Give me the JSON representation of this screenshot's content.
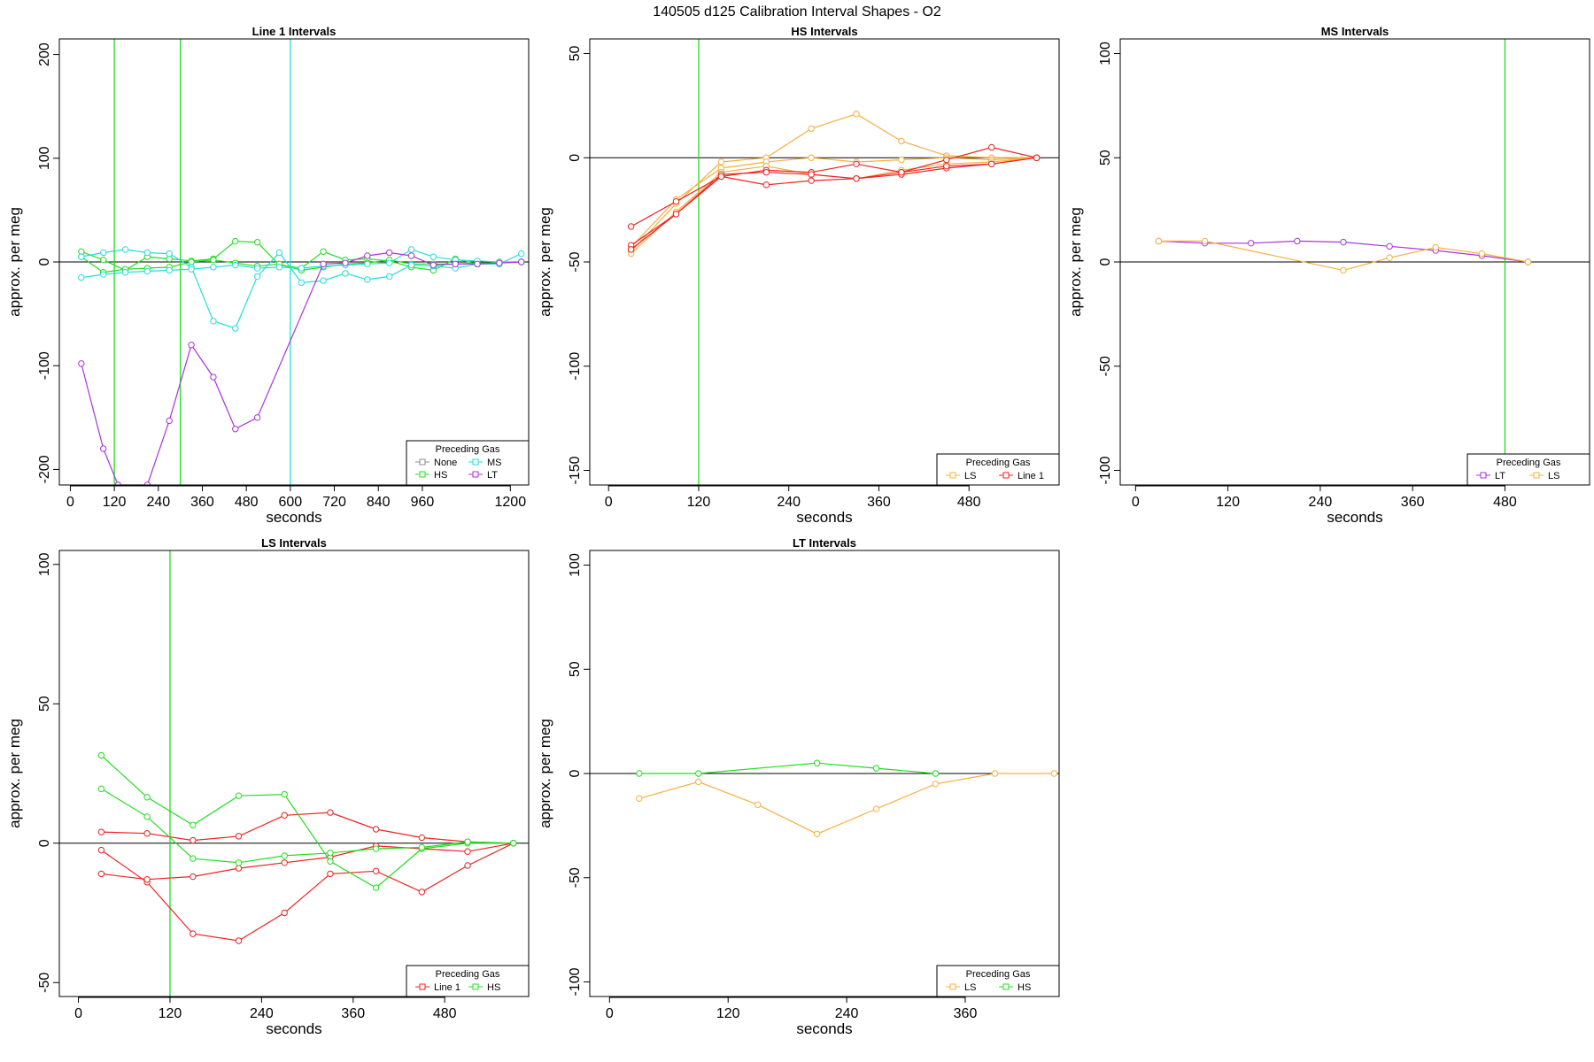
{
  "figure_title": "140505   d125   Calibration Interval Shapes - O2",
  "colors": {
    "None": "#888888",
    "HS": "#22dd22",
    "MS": "#22dddd",
    "LT": "#aa33dd",
    "LS": "#f5b040",
    "Line 1": "#ee2222"
  },
  "chart_data": [
    {
      "type": "line",
      "title": "Line 1 Intervals",
      "xlabel": "seconds",
      "ylabel": "approx. per meg",
      "xlim": [
        -30,
        1250
      ],
      "ylim": [
        -215,
        215
      ],
      "xticks": [
        0,
        120,
        240,
        360,
        480,
        600,
        720,
        840,
        960,
        1200
      ],
      "yticks": [
        -200,
        -100,
        0,
        100,
        200
      ],
      "hlines": [
        0
      ],
      "vlines": [
        {
          "x": 120,
          "color": "HS"
        },
        {
          "x": 300,
          "color": "HS"
        },
        {
          "x": 600,
          "color": "MS"
        }
      ],
      "legend": {
        "title": "Preceding Gas",
        "position": "bottom-right",
        "columns": 2,
        "entries": [
          "None",
          "MS",
          "HS",
          "LT"
        ]
      },
      "series": [
        {
          "color": "HS",
          "x": [
            30,
            90,
            150,
            210,
            270,
            330,
            390,
            450,
            510,
            570,
            630,
            690,
            750,
            810,
            870,
            930,
            990,
            1050,
            1110,
            1170,
            1230
          ],
          "y": [
            10,
            2,
            -8,
            5,
            3,
            1,
            3,
            20,
            19,
            -3,
            -6,
            10,
            2,
            3,
            1,
            -5,
            -8,
            3,
            -2,
            0,
            0
          ]
        },
        {
          "color": "HS",
          "x": [
            30,
            90,
            150,
            210,
            270,
            330,
            390,
            450,
            510,
            570,
            630,
            690,
            750,
            810,
            870,
            930,
            990,
            1050,
            1110,
            1170,
            1230
          ],
          "y": [
            5,
            -10,
            -7,
            -6,
            -5,
            0,
            2,
            -1,
            -4,
            -2,
            -8,
            -5,
            -2,
            -1,
            2,
            -2,
            -2,
            -2,
            -1,
            -1,
            0
          ]
        },
        {
          "color": "MS",
          "x": [
            30,
            90,
            150,
            210,
            270,
            330,
            390,
            450,
            510,
            570,
            630,
            690,
            750,
            810,
            870,
            930,
            990,
            1050,
            1110,
            1170,
            1230
          ],
          "y": [
            5,
            9,
            12,
            9,
            8,
            -5,
            -57,
            -64,
            -14,
            9,
            -20,
            -18,
            -11,
            -17,
            -14,
            -3,
            -4,
            -6,
            -2,
            -2,
            8
          ]
        },
        {
          "color": "MS",
          "x": [
            30,
            90,
            150,
            210,
            270,
            330,
            390,
            450,
            510,
            570,
            630,
            690,
            750,
            810,
            870,
            930,
            990,
            1050,
            1110,
            1170,
            1230
          ],
          "y": [
            -15,
            -12,
            -10,
            -9,
            -8,
            -7,
            -5,
            -3,
            -6,
            -5,
            -6,
            -4,
            -3,
            -2,
            -1,
            12,
            5,
            2,
            1,
            0,
            0
          ]
        },
        {
          "color": "LT",
          "x": [
            30,
            90,
            130,
            210,
            270,
            330,
            390,
            450,
            510,
            690,
            750,
            810,
            870,
            930,
            990,
            1050,
            1110,
            1170,
            1230
          ],
          "y": [
            -98,
            -180,
            -215,
            -215,
            -153,
            -80,
            -111,
            -161,
            -150,
            -2,
            -1,
            6,
            9,
            6,
            -3,
            -2,
            -2,
            -1,
            0
          ]
        }
      ]
    },
    {
      "type": "line",
      "title": "HS Intervals",
      "xlabel": "seconds",
      "ylabel": "approx. per meg",
      "xlim": [
        -25,
        600
      ],
      "ylim": [
        -157,
        57
      ],
      "xticks": [
        0,
        120,
        240,
        360,
        480
      ],
      "yticks": [
        -150,
        -100,
        -50,
        0,
        50
      ],
      "hlines": [
        0
      ],
      "vlines": [
        {
          "x": 120,
          "color": "HS"
        }
      ],
      "legend": {
        "title": "Preceding Gas",
        "position": "bottom-right",
        "columns": 2,
        "entries": [
          "LS",
          "Line 1"
        ]
      },
      "series": [
        {
          "color": "LS",
          "x": [
            30,
            90,
            150,
            210,
            270,
            330,
            390,
            450,
            510,
            570
          ],
          "y": [
            -45,
            -22,
            -2,
            0,
            14,
            21,
            8,
            1,
            0,
            0
          ]
        },
        {
          "color": "LS",
          "x": [
            30,
            90,
            150,
            210,
            270,
            330,
            390,
            450,
            510,
            570
          ],
          "y": [
            -43,
            -20,
            -5,
            -2,
            0,
            -2,
            -1,
            0,
            -1,
            0
          ]
        },
        {
          "color": "LS",
          "x": [
            30,
            90,
            150,
            210,
            270,
            330,
            390,
            450,
            510,
            570
          ],
          "y": [
            -46,
            -26,
            -7,
            -4,
            -8,
            -10,
            -6,
            -3,
            -2,
            0
          ]
        },
        {
          "color": "Line 1",
          "x": [
            30,
            90,
            150,
            210,
            270,
            330,
            390,
            450,
            510,
            570
          ],
          "y": [
            -33,
            -21,
            -9,
            -6,
            -7,
            -3,
            -7,
            -1,
            5,
            0
          ]
        },
        {
          "color": "Line 1",
          "x": [
            30,
            90,
            150,
            210,
            270,
            330,
            390,
            450,
            510,
            570
          ],
          "y": [
            -42,
            -27,
            -8,
            -7,
            -8,
            -10,
            -8,
            -5,
            -3,
            0
          ]
        },
        {
          "color": "Line 1",
          "x": [
            30,
            90,
            150,
            210,
            270,
            330,
            390,
            450,
            510,
            570
          ],
          "y": [
            -44,
            -27,
            -9,
            -13,
            -11,
            -10,
            -7,
            -4,
            -3,
            0
          ]
        }
      ]
    },
    {
      "type": "line",
      "title": "MS Intervals",
      "xlabel": "seconds",
      "ylabel": "approx. per meg",
      "xlim": [
        -20,
        590
      ],
      "ylim": [
        -107,
        107
      ],
      "xticks": [
        0,
        120,
        240,
        360,
        480
      ],
      "yticks": [
        -100,
        -50,
        0,
        50,
        100
      ],
      "hlines": [
        0
      ],
      "vlines": [
        {
          "x": 480,
          "color": "HS"
        }
      ],
      "legend": {
        "title": "Preceding Gas",
        "position": "bottom-right",
        "columns": 2,
        "entries": [
          "LT",
          "LS"
        ]
      },
      "series": [
        {
          "color": "LT",
          "x": [
            30,
            90,
            150,
            210,
            270,
            330,
            390,
            450,
            510
          ],
          "y": [
            10,
            9,
            9,
            10,
            9.5,
            7.5,
            5.5,
            3,
            0
          ]
        },
        {
          "color": "LS",
          "x": [
            30,
            90,
            270,
            330,
            390,
            450,
            510
          ],
          "y": [
            10,
            10,
            -4,
            2,
            7,
            4,
            0
          ]
        }
      ]
    },
    {
      "type": "line",
      "title": "LS Intervals",
      "xlabel": "seconds",
      "ylabel": "approx. per meg",
      "xlim": [
        -25,
        590
      ],
      "ylim": [
        -55,
        105
      ],
      "xticks": [
        0,
        120,
        240,
        360,
        480
      ],
      "yticks": [
        -50,
        0,
        50,
        100
      ],
      "hlines": [
        0
      ],
      "vlines": [
        {
          "x": 120,
          "color": "HS"
        }
      ],
      "legend": {
        "title": "Preceding Gas",
        "position": "bottom-right",
        "columns": 2,
        "entries": [
          "Line 1",
          "HS"
        ]
      },
      "series": [
        {
          "color": "Line 1",
          "x": [
            30,
            90,
            150,
            210,
            270,
            330,
            390,
            450,
            510,
            570
          ],
          "y": [
            4,
            3.5,
            1,
            2.5,
            10,
            11,
            5,
            2,
            0.5,
            0
          ]
        },
        {
          "color": "Line 1",
          "x": [
            30,
            90,
            150,
            210,
            270,
            330,
            390,
            450,
            510,
            570
          ],
          "y": [
            -2.5,
            -14,
            -32.5,
            -35,
            -25,
            -11,
            -10,
            -17.5,
            -8,
            0
          ]
        },
        {
          "color": "Line 1",
          "x": [
            30,
            90,
            150,
            210,
            270,
            330,
            390,
            450,
            510,
            570
          ],
          "y": [
            -11,
            -13,
            -12,
            -9,
            -7,
            -5,
            -1,
            -2,
            -3,
            0
          ]
        },
        {
          "color": "HS",
          "x": [
            30,
            90,
            150,
            210,
            270,
            330,
            390,
            450,
            510,
            570
          ],
          "y": [
            31.5,
            16.5,
            6.5,
            17,
            17.5,
            -6.5,
            -16,
            -2,
            0,
            0
          ]
        },
        {
          "color": "HS",
          "x": [
            30,
            90,
            150,
            210,
            270,
            330,
            390,
            450,
            510,
            570
          ],
          "y": [
            19.5,
            9.5,
            -5.5,
            -7,
            -4.5,
            -3.5,
            -2,
            -1.5,
            0.5,
            0
          ]
        }
      ]
    },
    {
      "type": "line",
      "title": "LT Intervals",
      "xlabel": "seconds",
      "ylabel": "approx. per meg",
      "xlim": [
        -20,
        455
      ],
      "ylim": [
        -107,
        107
      ],
      "xticks": [
        0,
        120,
        240,
        360
      ],
      "yticks": [
        -100,
        -50,
        0,
        50,
        100
      ],
      "hlines": [
        0
      ],
      "vlines": [],
      "legend": {
        "title": "Preceding Gas",
        "position": "bottom-right",
        "columns": 2,
        "entries": [
          "LS",
          "HS"
        ]
      },
      "series": [
        {
          "color": "LS",
          "x": [
            30,
            90,
            150,
            210,
            270,
            330,
            390,
            450
          ],
          "y": [
            -12,
            -4,
            -15,
            -29,
            -17,
            -5,
            0,
            0
          ]
        },
        {
          "color": "HS",
          "x": [
            30,
            90,
            210,
            270,
            330
          ],
          "y": [
            0,
            0,
            5,
            2.5,
            0
          ]
        }
      ]
    }
  ]
}
